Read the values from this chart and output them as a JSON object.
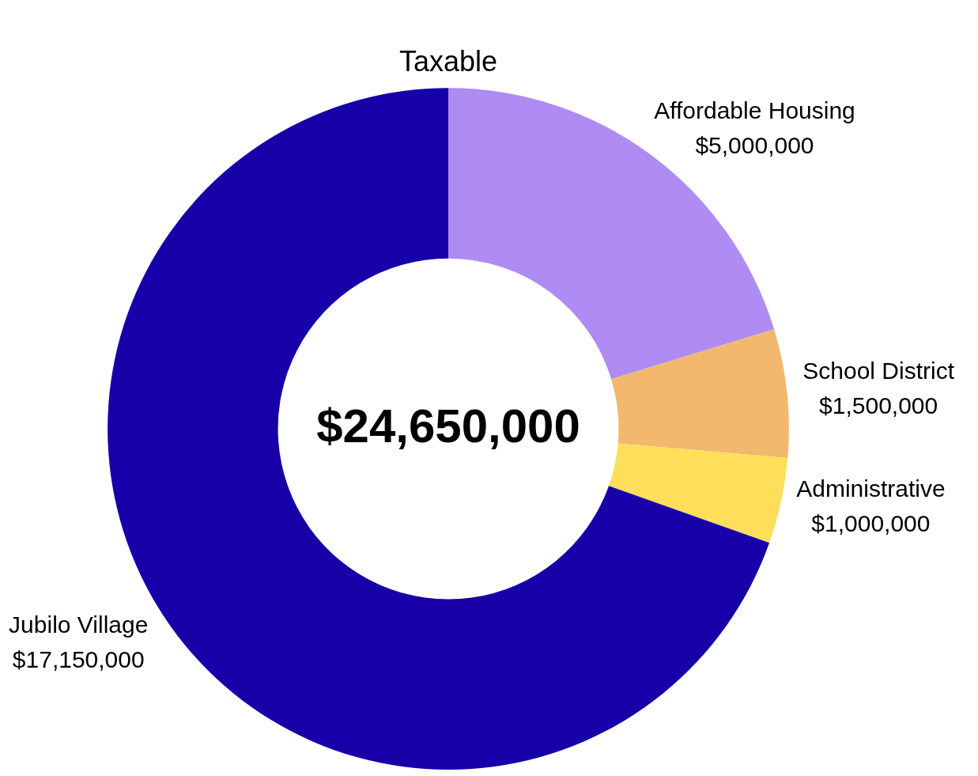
{
  "chart_data": {
    "type": "donut",
    "title": "Taxable",
    "categories": [
      "Affordable Housing",
      "School District",
      "Administrative",
      "Jubilo Village"
    ],
    "values": [
      5000000,
      1500000,
      1000000,
      17150000
    ],
    "value_labels": [
      "$5,000,000",
      "$1,500,000",
      "$1,000,000",
      "$17,150,000"
    ],
    "colors": [
      "#ae8cf4",
      "#f2b86e",
      "#ffde5a",
      "#1800a8"
    ],
    "annotations": [
      "$24,650,000"
    ],
    "legend": false
  }
}
